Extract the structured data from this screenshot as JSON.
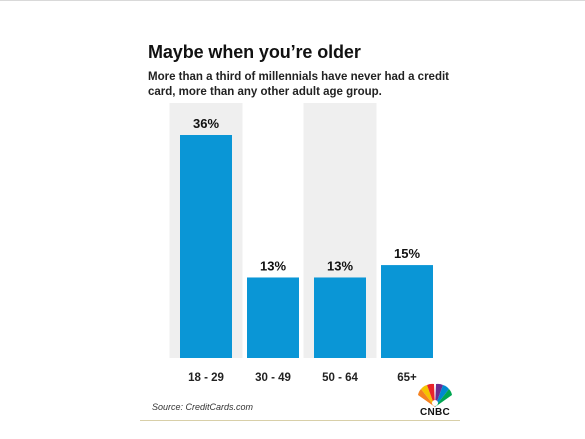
{
  "title": "Maybe when you’re older",
  "subtitle": "More than a third of millennials have never had a credit card, more than any other adult age group.",
  "source": "Source: CreditCards.com",
  "brand": "CNBC",
  "colors": {
    "bar": "#0a96d6",
    "highlight": "#efefef",
    "rule": "#d8cfa8"
  },
  "chart_data": {
    "type": "bar",
    "categories": [
      "18 - 29",
      "30 - 49",
      "50 - 64",
      "65+"
    ],
    "values": [
      36,
      13,
      13,
      15
    ],
    "value_labels": [
      "36%",
      "13%",
      "13%",
      "15%"
    ],
    "highlighted_categories": [
      "18 - 29",
      "50 - 64"
    ],
    "ylim": [
      0,
      36
    ],
    "grid": false,
    "legend": "none"
  }
}
